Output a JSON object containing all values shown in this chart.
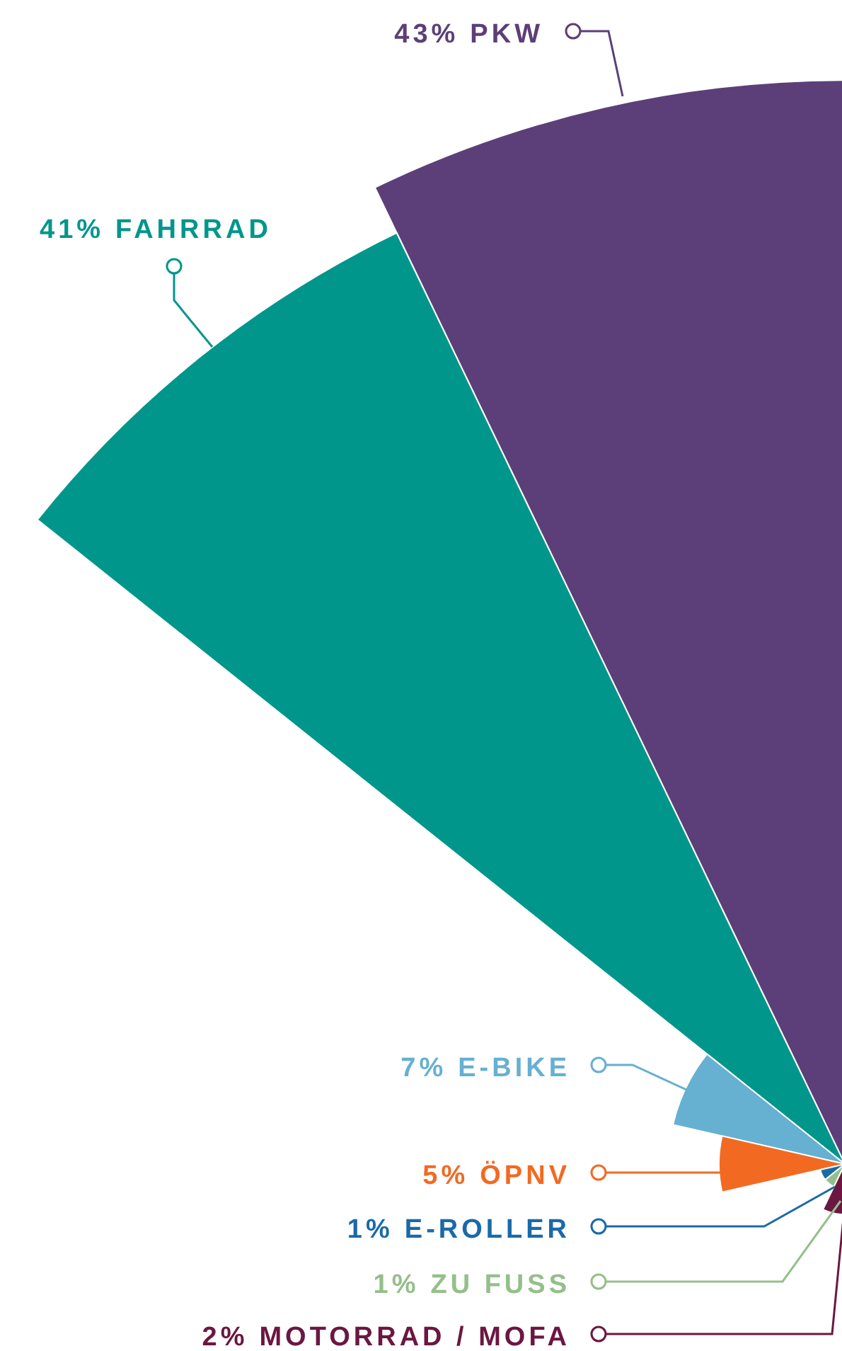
{
  "chart_data": {
    "type": "other",
    "categories": [
      "PKW",
      "FAHRRAD",
      "E-BIKE",
      "ÖPNV",
      "E-ROLLER",
      "ZU FUSS",
      "MOTORRAD / MOFA"
    ],
    "values": [
      43,
      41,
      7,
      5,
      1,
      1,
      2
    ],
    "colors": [
      "#5c3f78",
      "#00968c",
      "#66b0d2",
      "#f26a21",
      "#1b6aa8",
      "#94bf8a",
      "#6b1741"
    ],
    "value_labels": [
      "43%",
      "41%",
      "7%",
      "5%",
      "1%",
      "1%",
      "2%"
    ]
  }
}
